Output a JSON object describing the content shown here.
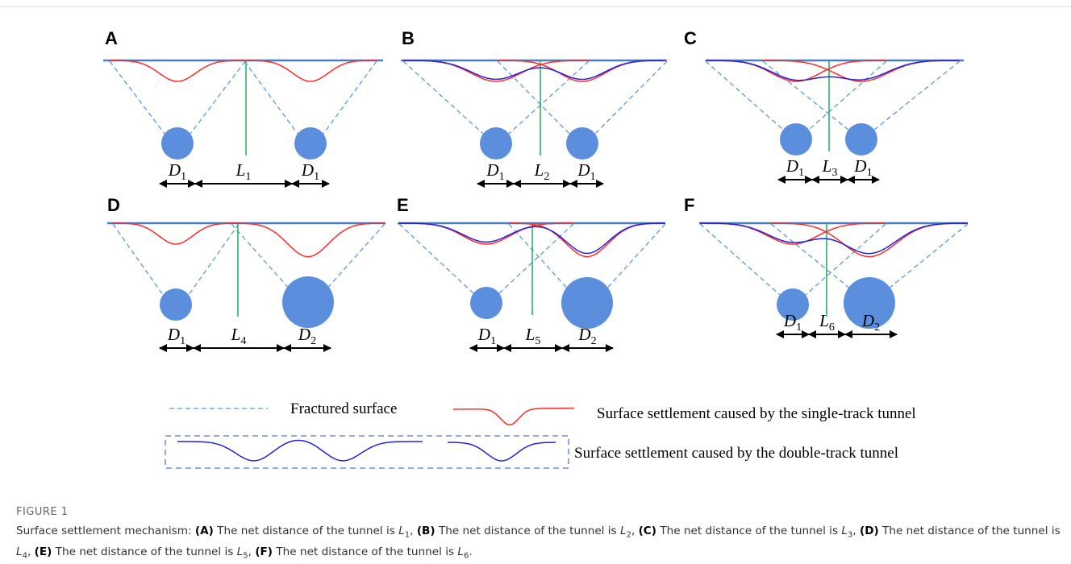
{
  "panels": [
    {
      "letter": "A",
      "labels": [
        {
          "main": "D",
          "sub": "1"
        },
        {
          "main": "L",
          "sub": "1"
        },
        {
          "main": "D",
          "sub": "1"
        }
      ]
    },
    {
      "letter": "B",
      "labels": [
        {
          "main": "D",
          "sub": "1"
        },
        {
          "main": "L",
          "sub": "2"
        },
        {
          "main": "D",
          "sub": "1"
        }
      ]
    },
    {
      "letter": "C",
      "labels": [
        {
          "main": "D",
          "sub": "1"
        },
        {
          "main": "L",
          "sub": "3"
        },
        {
          "main": "D",
          "sub": "1"
        }
      ]
    },
    {
      "letter": "D",
      "labels": [
        {
          "main": "D",
          "sub": "1"
        },
        {
          "main": "L",
          "sub": "4"
        },
        {
          "main": "D",
          "sub": "2"
        }
      ]
    },
    {
      "letter": "E",
      "labels": [
        {
          "main": "D",
          "sub": "1"
        },
        {
          "main": "L",
          "sub": "5"
        },
        {
          "main": "D",
          "sub": "2"
        }
      ]
    },
    {
      "letter": "F",
      "labels": [
        {
          "main": "D",
          "sub": "1"
        },
        {
          "main": "L",
          "sub": "6"
        },
        {
          "main": "D",
          "sub": "2"
        }
      ]
    }
  ],
  "legend": {
    "fractured": "Fractured surface",
    "single": "Surface settlement caused by the single-track tunnel",
    "double": "Surface settlement caused by the double-track tunnel"
  },
  "caption": {
    "label": "FIGURE 1",
    "intro": "Surface settlement mechanism:",
    "items": [
      {
        "letter": "(A)",
        "text": "The net distance of the tunnel is",
        "var": "L",
        "sub": "1",
        "end": ","
      },
      {
        "letter": "(B)",
        "text": "The net distance of the tunnel is",
        "var": "L",
        "sub": "2",
        "end": ","
      },
      {
        "letter": "(C)",
        "text": "The net distance of the tunnel is",
        "var": "L",
        "sub": "3",
        "end": ","
      },
      {
        "letter": "(D)",
        "text": "The net distance of the tunnel is",
        "var": "L",
        "sub": "4",
        "end": ","
      },
      {
        "letter": "(E)",
        "text": "The net distance of the tunnel is",
        "var": "L",
        "sub": "5",
        "end": ","
      },
      {
        "letter": "(F)",
        "text": "The net distance of the tunnel is",
        "var": "L",
        "sub": "6",
        "end": "."
      }
    ]
  }
}
